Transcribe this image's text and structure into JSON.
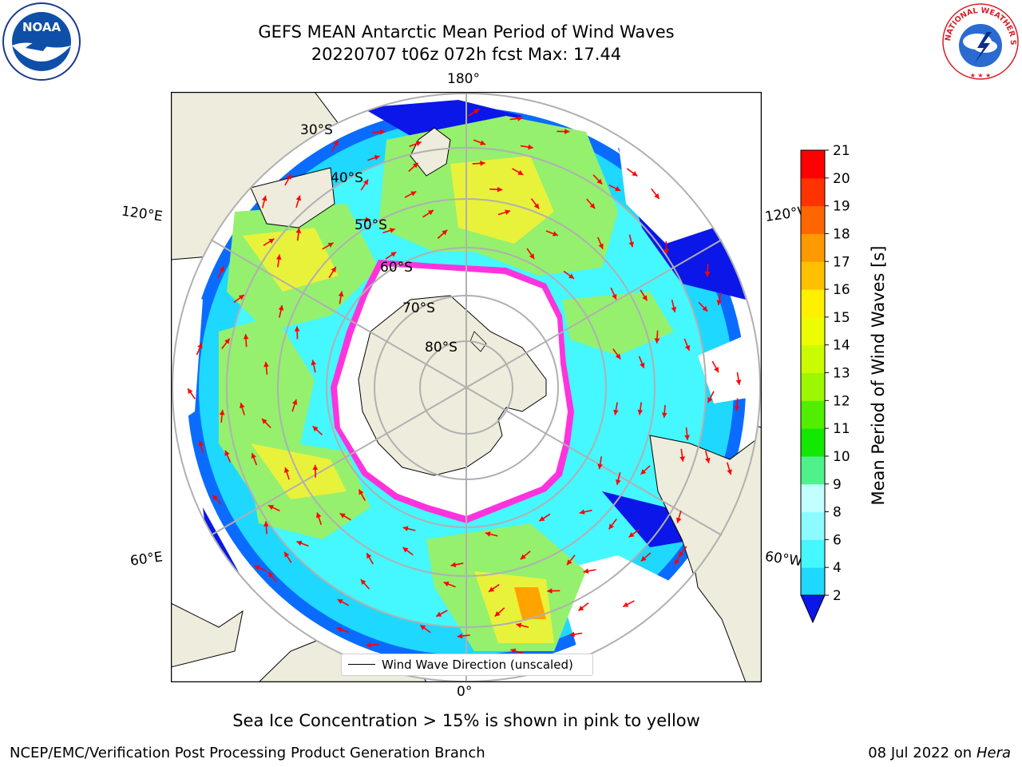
{
  "title": {
    "line1": "GEFS MEAN Antarctic Mean Period of Wind Waves",
    "line2": "20220707 t06z 072h fcst   Max: 17.44"
  },
  "map": {
    "projection": "south-polar-stereographic",
    "longitude_labels": {
      "top": "180°",
      "bottom": "0°",
      "upper_left": "120°E",
      "lower_left": "60°E",
      "upper_right": "120°W",
      "lower_right": "60°W"
    },
    "latitude_labels": [
      "30°S",
      "40°S",
      "50°S",
      "60°S",
      "70°S",
      "80°S"
    ],
    "legend_label": "Wind Wave Direction (unscaled)",
    "colors": {
      "land": "#eeecdc",
      "ocean_low": "#0a17e8",
      "ocean_cyan": "#27f1ff",
      "ocean_green": "#95f06e",
      "ocean_yellow": "#e8f23b",
      "ice_edge": "#ff33dd",
      "arrows": "#ff0000"
    }
  },
  "colorbar": {
    "label": "Mean Period of Wind Waves [s]",
    "ticks": [
      "2",
      "4",
      "6",
      "8",
      "9",
      "10",
      "11",
      "12",
      "13",
      "14",
      "15",
      "16",
      "17",
      "18",
      "19",
      "20",
      "21"
    ],
    "colors": [
      "#0a6cff",
      "#1fd8ff",
      "#45f7ff",
      "#8cfbff",
      "#c2ffff",
      "#4ff28a",
      "#13e800",
      "#52ee00",
      "#9df700",
      "#cbfb00",
      "#eefc00",
      "#fff000",
      "#ffc000",
      "#ff9900",
      "#ff6600",
      "#ff3300",
      "#ff0000"
    ],
    "under_color": "#0a17e8"
  },
  "footer": {
    "note": "Sea Ice Concentration > 15% is shown in pink to yellow",
    "left": "NCEP/EMC/Verification Post Processing Product Generation Branch",
    "right_date": "08 Jul 2022 on ",
    "right_machine": "Hera"
  },
  "logos": {
    "noaa": "NOAA",
    "nws_text": "NATIONAL WEATHER SERVICE"
  }
}
